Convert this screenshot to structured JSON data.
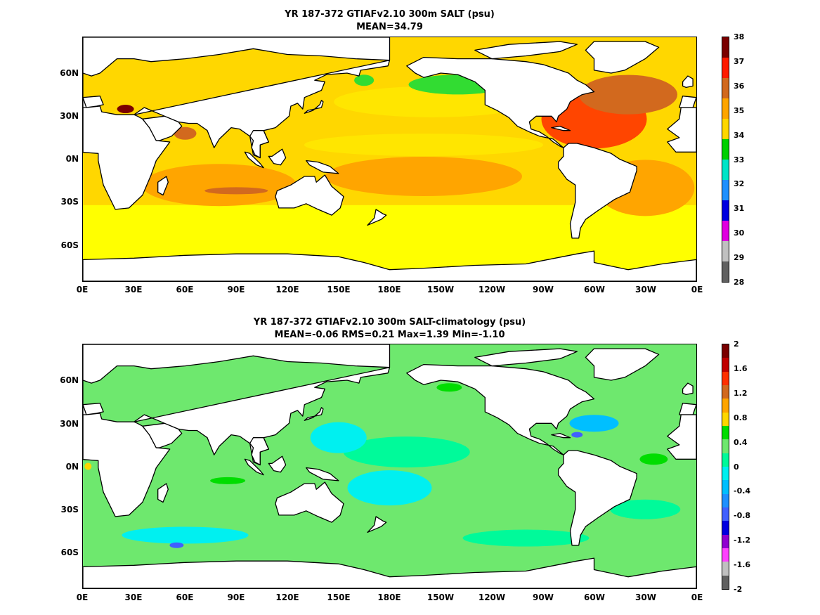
{
  "panels": [
    {
      "title_line1": "YR 187-372 GTIAFv2.10 300m SALT (psu)",
      "title_line2": "MEAN=34.79",
      "y_ticks": [
        "60N",
        "30N",
        "0N",
        "30S",
        "60S"
      ],
      "x_ticks": [
        "0E",
        "30E",
        "60E",
        "90E",
        "120E",
        "150E",
        "180E",
        "150W",
        "120W",
        "90W",
        "60W",
        "30W",
        "0E"
      ],
      "colorbar": {
        "labels": [
          "38",
          "37",
          "36",
          "35",
          "34",
          "33",
          "32",
          "31",
          "30",
          "29",
          "28"
        ],
        "colors": [
          "#7a0000",
          "#ff1a00",
          "#d2691e",
          "#ffa500",
          "#ffd700",
          "#00d000",
          "#00e5c8",
          "#1e90ff",
          "#0000e0",
          "#e000e0",
          "#c0c0c0",
          "#606060"
        ]
      },
      "fields": {
        "background": "#ffd700",
        "high_atlantic": "#ff4500",
        "med_sea": "#7a0000",
        "red_arabian": "#d2691e",
        "subtrop_ocean": "#ffa500",
        "tropical": "#ffe600",
        "fresh_nw_pac": "#32dc32",
        "southern": "#ffff00"
      }
    },
    {
      "title_line1": "YR 187-372 GTIAFv2.10 300m SALT-climatology (psu)",
      "title_line2": "MEAN=-0.06   RMS=0.21   Max=1.39   Min=-1.10",
      "y_ticks": [
        "60N",
        "30N",
        "0N",
        "30S",
        "60S"
      ],
      "x_ticks": [
        "0E",
        "30E",
        "60E",
        "90E",
        "120E",
        "150E",
        "180E",
        "150W",
        "120W",
        "90W",
        "60W",
        "30W",
        "0E"
      ],
      "colorbar": {
        "labels": [
          "2",
          "1.6",
          "1.2",
          "0.8",
          "0.4",
          "0",
          "-0.4",
          "-0.8",
          "-1.2",
          "-1.6",
          "-2"
        ],
        "colors": [
          "#7a0000",
          "#c00000",
          "#ff3000",
          "#d2691e",
          "#ffa500",
          "#ffd700",
          "#00dd00",
          "#6ee86e",
          "#00fa9a",
          "#00f0f0",
          "#00bfff",
          "#1e90ff",
          "#4060ff",
          "#0000e0",
          "#9000d0",
          "#ff40ff",
          "#c0c0c0",
          "#606060"
        ]
      },
      "fields": {
        "background": "#6ee86e",
        "neg_pacific": "#00f0f0",
        "neg_southern": "#00fa9a",
        "neg_strong": "#00bfff",
        "neg_max": "#4060ff",
        "pos_patch": "#00dd00",
        "pos_strong": "#ffd700"
      }
    }
  ],
  "land_color": "#ffffff",
  "coast_color": "#000000"
}
